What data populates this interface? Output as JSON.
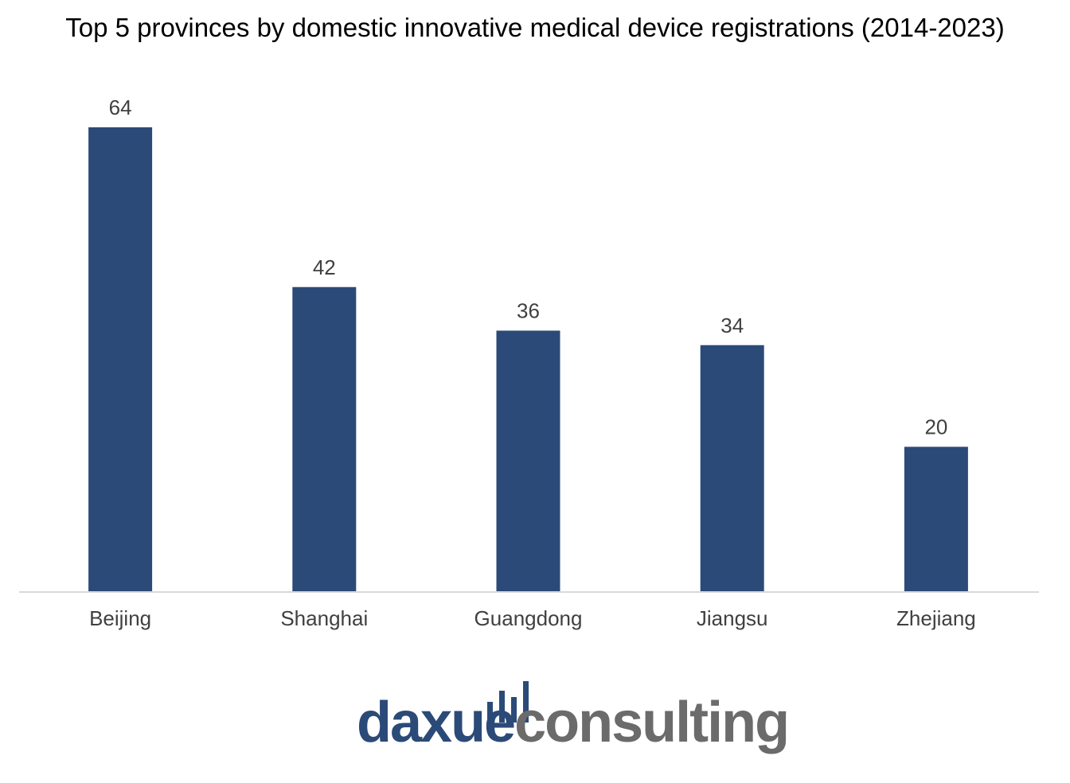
{
  "chart_data": {
    "type": "bar",
    "title": "Top 5 provinces by domestic innovative medical device registrations (2014-2023)",
    "categories": [
      "Beijing",
      "Shanghai",
      "Guangdong",
      "Jiangsu",
      "Zhejiang"
    ],
    "values": [
      64,
      42,
      36,
      34,
      20
    ],
    "data_labels": [
      "64",
      "42",
      "36",
      "34",
      "20"
    ],
    "xlabel": "",
    "ylabel": "",
    "ylim": [
      0,
      64
    ],
    "grid": false,
    "legend": "none",
    "bar_color": "#2b4a78",
    "axis_color": "#d9d9d9",
    "label_color": "#404040"
  },
  "logo": {
    "part1": "daxue",
    "part2": "consulting",
    "color_primary": "#2b4a78",
    "color_secondary": "#6b6b6b"
  }
}
